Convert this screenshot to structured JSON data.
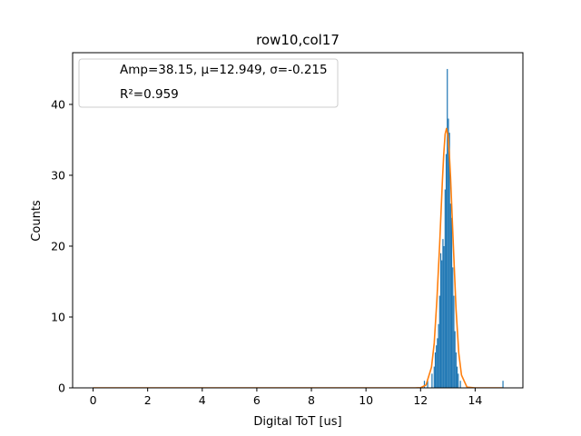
{
  "chart_data": {
    "type": "bar",
    "title": "row10,col17",
    "xlabel": "Digital ToT [us]",
    "ylabel": "Counts",
    "xlim": [
      -0.75,
      15.75
    ],
    "ylim": [
      0,
      47.3
    ],
    "xticks": [
      0,
      2,
      4,
      6,
      8,
      10,
      12,
      14
    ],
    "yticks": [
      0,
      10,
      20,
      30,
      40
    ],
    "grid": false,
    "legend": {
      "placement": "top-left",
      "entries": [
        "Amp=38.15, μ=12.949, σ=-0.215",
        "R²=0.959"
      ]
    },
    "series": [
      {
        "type": "histogram",
        "color": "#1f77b4",
        "bin_width": 0.04,
        "bins": [
          {
            "x": 12.12,
            "y": 1
          },
          {
            "x": 12.24,
            "y": 1
          },
          {
            "x": 12.4,
            "y": 2
          },
          {
            "x": 12.48,
            "y": 3
          },
          {
            "x": 12.52,
            "y": 5
          },
          {
            "x": 12.56,
            "y": 6
          },
          {
            "x": 12.6,
            "y": 7
          },
          {
            "x": 12.64,
            "y": 9
          },
          {
            "x": 12.68,
            "y": 13
          },
          {
            "x": 12.72,
            "y": 19
          },
          {
            "x": 12.76,
            "y": 18
          },
          {
            "x": 12.8,
            "y": 21
          },
          {
            "x": 12.84,
            "y": 20
          },
          {
            "x": 12.88,
            "y": 28
          },
          {
            "x": 12.92,
            "y": 33
          },
          {
            "x": 12.96,
            "y": 45
          },
          {
            "x": 13.0,
            "y": 38
          },
          {
            "x": 13.04,
            "y": 36
          },
          {
            "x": 13.08,
            "y": 26
          },
          {
            "x": 13.12,
            "y": 24
          },
          {
            "x": 13.16,
            "y": 17
          },
          {
            "x": 13.2,
            "y": 13
          },
          {
            "x": 13.24,
            "y": 8
          },
          {
            "x": 13.28,
            "y": 5
          },
          {
            "x": 13.32,
            "y": 3
          },
          {
            "x": 13.36,
            "y": 2
          },
          {
            "x": 13.44,
            "y": 1
          },
          {
            "x": 15.0,
            "y": 1
          }
        ]
      },
      {
        "type": "line",
        "color": "#ff7f0e",
        "x": [
          0,
          11.8,
          12.0,
          12.2,
          12.4,
          12.5,
          12.6,
          12.7,
          12.8,
          12.85,
          12.9,
          12.95,
          13.0,
          13.05,
          13.1,
          13.2,
          13.3,
          13.4,
          13.5,
          13.7,
          14.0,
          15.0
        ],
        "y": [
          0,
          0,
          0.02,
          0.4,
          2.9,
          6.3,
          12.5,
          20.3,
          29.2,
          33.0,
          35.8,
          36.6,
          35.7,
          33.3,
          29.6,
          20.2,
          11.1,
          4.9,
          1.8,
          0.1,
          0,
          0
        ]
      }
    ]
  }
}
